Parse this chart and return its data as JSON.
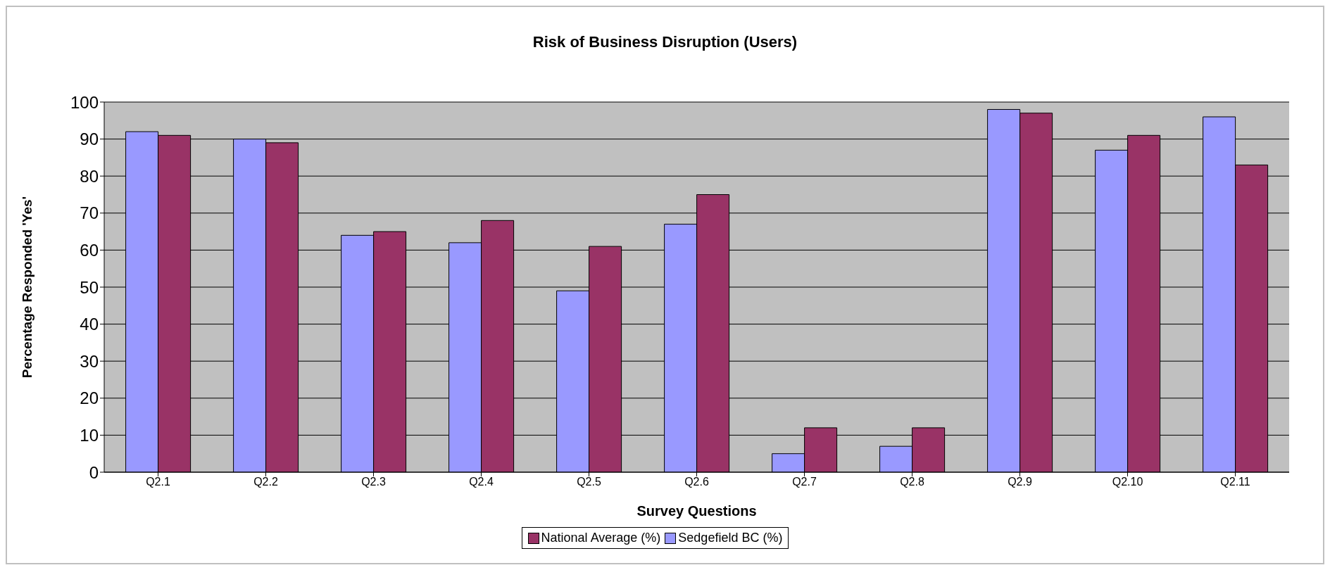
{
  "chart_data": {
    "type": "bar",
    "title": "Risk of Business Disruption (Users)",
    "xlabel": "Survey Questions",
    "ylabel": "Percentage Responded 'Yes'",
    "categories": [
      "Q2.1",
      "Q2.2",
      "Q2.3",
      "Q2.4",
      "Q2.5",
      "Q2.6",
      "Q2.7",
      "Q2.8",
      "Q2.9",
      "Q2.10",
      "Q2.11"
    ],
    "series": [
      {
        "name": "Sedgefield BC (%)",
        "color": "#9999ff",
        "values": [
          92,
          90,
          64,
          62,
          49,
          67,
          5,
          7,
          98,
          87,
          96
        ]
      },
      {
        "name": "National Average (%)",
        "color": "#993366",
        "values": [
          91,
          89,
          65,
          68,
          61,
          75,
          12,
          12,
          97,
          91,
          83
        ]
      }
    ],
    "ylim": [
      0,
      100
    ],
    "yticks": [
      0,
      10,
      20,
      30,
      40,
      50,
      60,
      70,
      80,
      90,
      100
    ],
    "grid": "y",
    "legend": "bottom"
  }
}
